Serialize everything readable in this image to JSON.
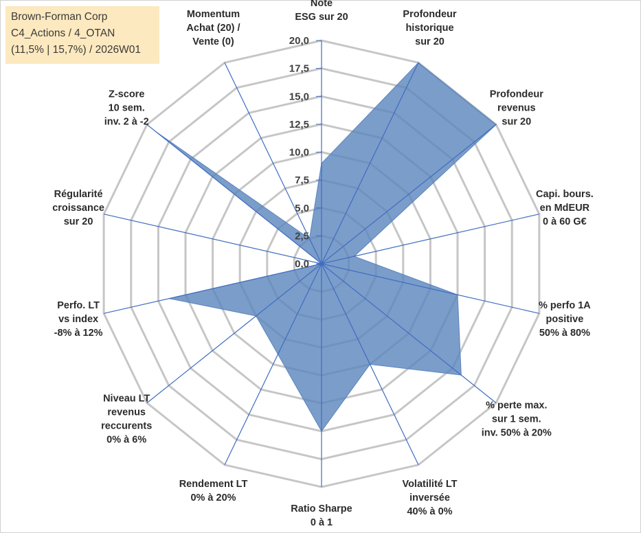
{
  "info_box": {
    "line1": "Brown-Forman Corp",
    "line2": "C4_Actions / 4_OTAN",
    "line3": "(11,5% | 15,7%) / 2026W01"
  },
  "chart_data": {
    "type": "radar",
    "title": "",
    "rlim": [
      0,
      20
    ],
    "ticks": [
      0,
      2.5,
      5,
      7.5,
      10,
      12.5,
      15,
      17.5,
      20
    ],
    "tick_labels": [
      "0,0",
      "2,5",
      "5,0",
      "7,5",
      "10,0",
      "12,5",
      "15,0",
      "17,5",
      "20,0"
    ],
    "categories": [
      [
        "Note",
        "ESG sur 20"
      ],
      [
        "Profondeur",
        "historique",
        "sur 20"
      ],
      [
        "Profondeur",
        "revenus",
        "sur 20"
      ],
      [
        "Capi. bours.",
        "en MdEUR",
        "0 à 60 G€"
      ],
      [
        "% perfo 1A",
        "positive",
        "50% à 80%"
      ],
      [
        "% perte max.",
        "sur 1 sem.",
        "inv. 50% à 20%"
      ],
      [
        "Volatilité LT",
        "inversée",
        "40% à 0%"
      ],
      [
        "Ratio Sharpe",
        "0 à 1"
      ],
      [
        "Rendement LT",
        "0% à 20%"
      ],
      [
        "Niveau LT",
        "revenus",
        "reccurents",
        "0% à 6%"
      ],
      [
        "Perfo. LT",
        "vs index",
        "-8% à 12%"
      ],
      [
        "Régularité",
        "croissance",
        "sur 20"
      ],
      [
        "Z-score",
        "10 sem.",
        "inv. 2 à -2"
      ],
      [
        "Momentum",
        "Achat (20) /",
        "Vente (0)"
      ]
    ],
    "series": [
      {
        "name": "Brown-Forman Corp",
        "color": "#5a84bd",
        "values": [
          9.0,
          20.0,
          20.0,
          3.0,
          12.5,
          16.0,
          10.0,
          15.0,
          9.0,
          7.5,
          14.0,
          0.0,
          19.0,
          2.5
        ]
      }
    ],
    "grid": true,
    "legend": "none"
  }
}
